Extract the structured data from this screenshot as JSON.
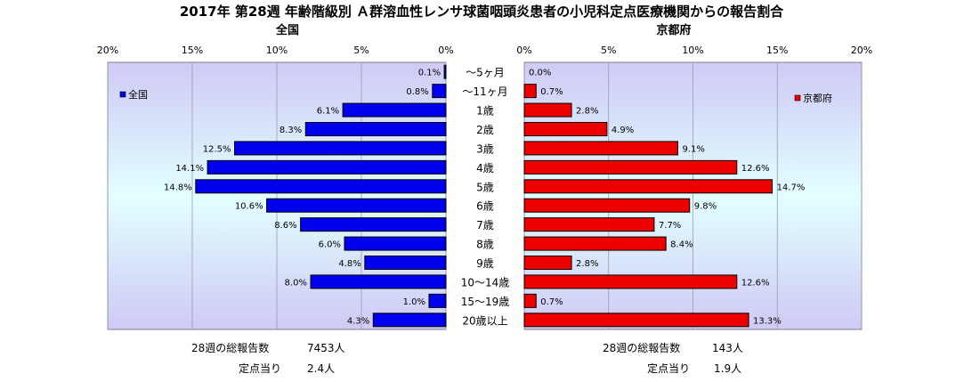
{
  "chart_data": {
    "type": "bar",
    "orientation": "horizontal",
    "layout": "back-to-back",
    "title": "2017年 第28週 年齢階級別 Ａ群溶血性レンサ球菌咽頭炎患者の小児科定点医療機関からの報告割合",
    "categories": [
      "～5ヶ月",
      "～11ヶ月",
      "1歳",
      "2歳",
      "3歳",
      "4歳",
      "5歳",
      "6歳",
      "7歳",
      "8歳",
      "9歳",
      "10～14歳",
      "15～19歳",
      "20歳以上"
    ],
    "axis_ticks": [
      "20%",
      "15%",
      "10%",
      "5%",
      "0%"
    ],
    "axis_ticks_right": [
      "0%",
      "5%",
      "10%",
      "15%",
      "20%"
    ],
    "xlim": [
      0,
      20
    ],
    "grid": true,
    "series": [
      {
        "name": "全国",
        "subtitle": "全国",
        "legend": "全国",
        "color": "#0000ee",
        "side": "left",
        "values": [
          0.1,
          0.8,
          6.1,
          8.3,
          12.5,
          14.1,
          14.8,
          10.6,
          8.6,
          6.0,
          4.8,
          8.0,
          1.0,
          4.3
        ],
        "labels": [
          "0.1%",
          "0.8%",
          "6.1%",
          "8.3%",
          "12.5%",
          "14.1%",
          "14.8%",
          "10.6%",
          "8.6%",
          "6.0%",
          "4.8%",
          "8.0%",
          "1.0%",
          "4.3%"
        ],
        "footer": {
          "total_label": "28週の総報告数",
          "total_value": "7453人",
          "per_label": "定点当り",
          "per_value": "2.4人"
        }
      },
      {
        "name": "京都府",
        "subtitle": "京都府",
        "legend": "京都府",
        "color": "#ee0000",
        "side": "right",
        "values": [
          0.0,
          0.7,
          2.8,
          4.9,
          9.1,
          12.6,
          14.7,
          9.8,
          7.7,
          8.4,
          2.8,
          12.6,
          0.7,
          13.3
        ],
        "labels": [
          "0.0%",
          "0.7%",
          "2.8%",
          "4.9%",
          "9.1%",
          "12.6%",
          "14.7%",
          "9.8%",
          "7.7%",
          "8.4%",
          "2.8%",
          "12.6%",
          "0.7%",
          "13.3%"
        ],
        "footer": {
          "total_label": "28週の総報告数",
          "total_value": "143人",
          "per_label": "定点当り",
          "per_value": "1.9人"
        }
      }
    ]
  }
}
